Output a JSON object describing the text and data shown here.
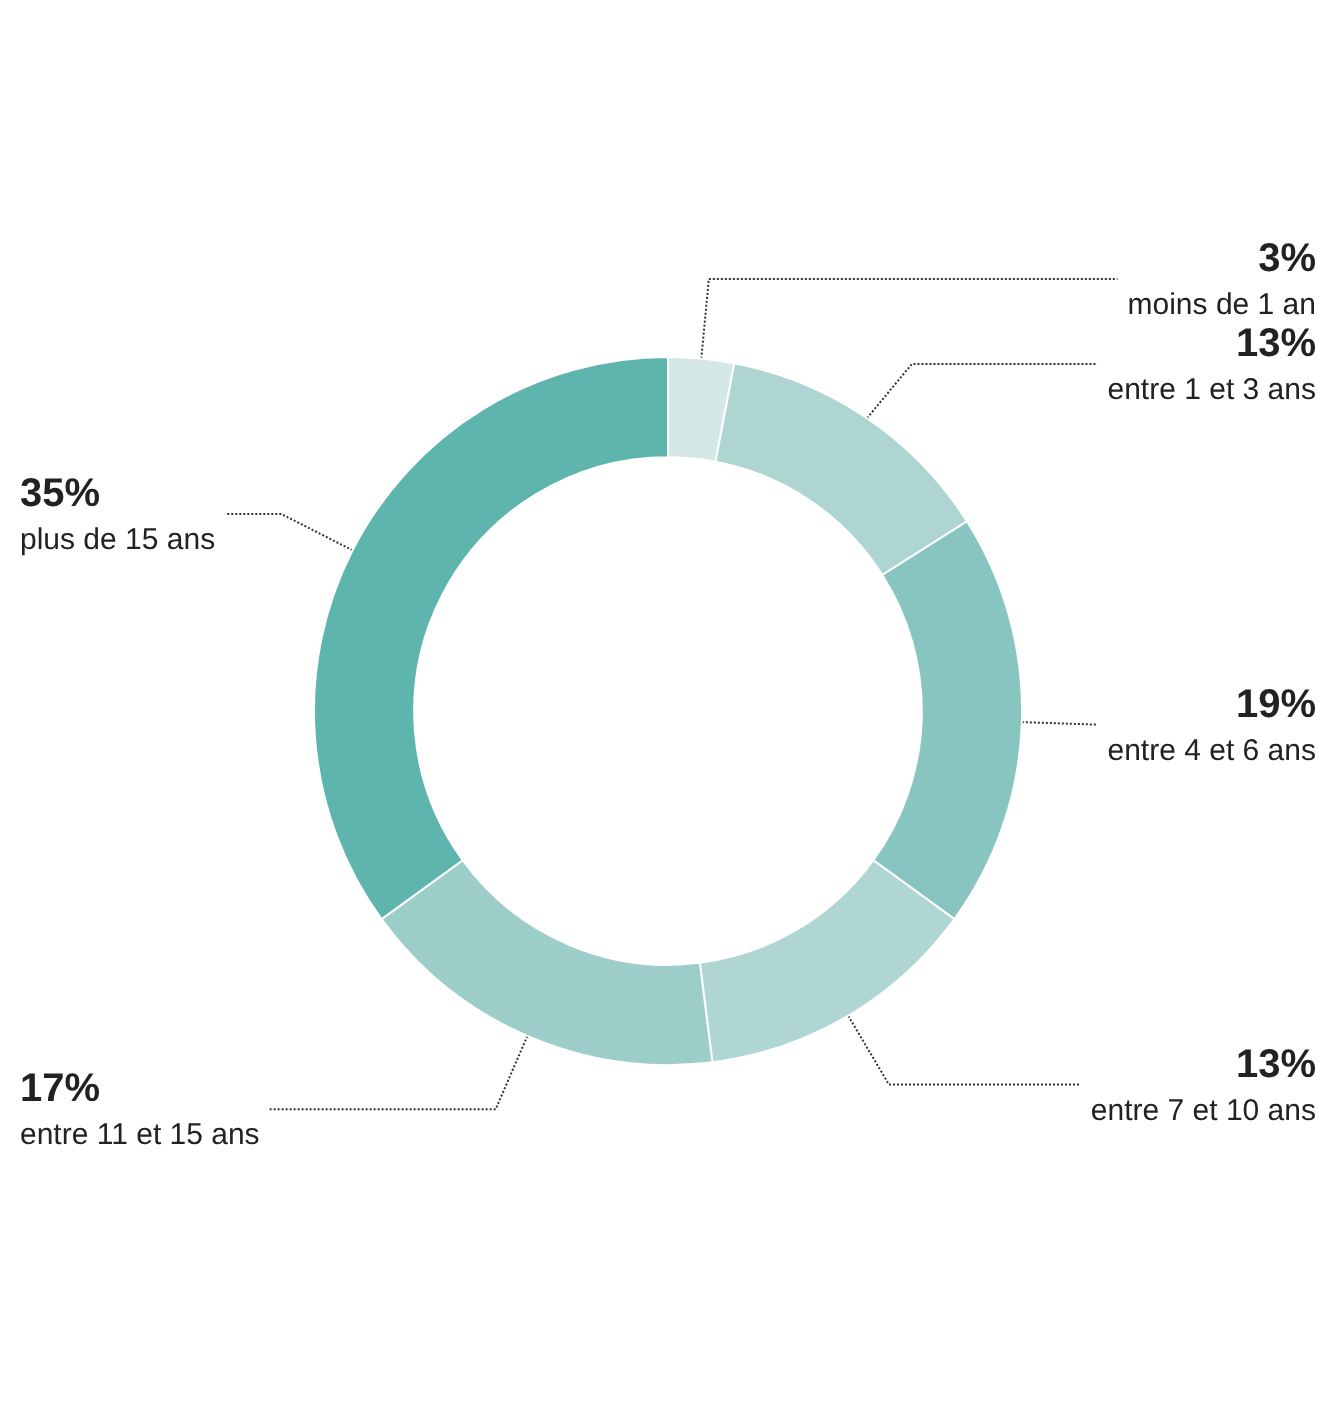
{
  "chart_data": {
    "type": "donut",
    "categories": [
      "moins de 1 an",
      "entre 1 et 3 ans",
      "entre 4 et 6 ans",
      "entre 7 et 10 ans",
      "entre 11 et 15 ans",
      "plus de 15 ans"
    ],
    "values": [
      3,
      13,
      19,
      13,
      17,
      35
    ],
    "value_labels": [
      "3%",
      "13%",
      "19%",
      "13%",
      "17%",
      "35%"
    ],
    "colors": [
      "#d4e9e7",
      "#aed5d2",
      "#88c4c0",
      "#afd6d3",
      "#9ccdc9",
      "#5db5ad"
    ],
    "legend": false
  }
}
